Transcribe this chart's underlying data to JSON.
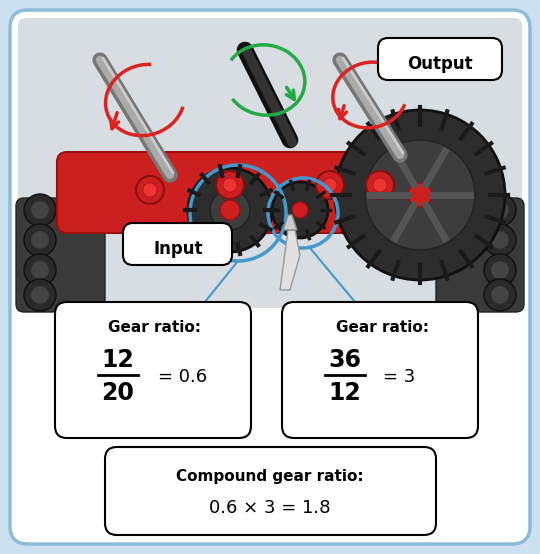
{
  "fig_width": 5.4,
  "fig_height": 5.54,
  "dpi": 100,
  "outer_bg": "#cce0f0",
  "inner_bg": "#ffffff",
  "border_color": "#8bbcd8",
  "label_input": "Input",
  "label_output": "Output",
  "box1_title": "Gear ratio:",
  "box1_num": "12",
  "box1_den": "20",
  "box1_result": "= 0.6",
  "box2_title": "Gear ratio:",
  "box2_num": "36",
  "box2_den": "12",
  "box2_result": "= 3",
  "compound_title": "Compound gear ratio:",
  "compound_formula": "0.6 × 3 = 1.8",
  "arrow_red": "#dd2222",
  "arrow_green": "#22aa44",
  "circle_blue": "#4499cc",
  "gear_bg": "#e8e8e8"
}
